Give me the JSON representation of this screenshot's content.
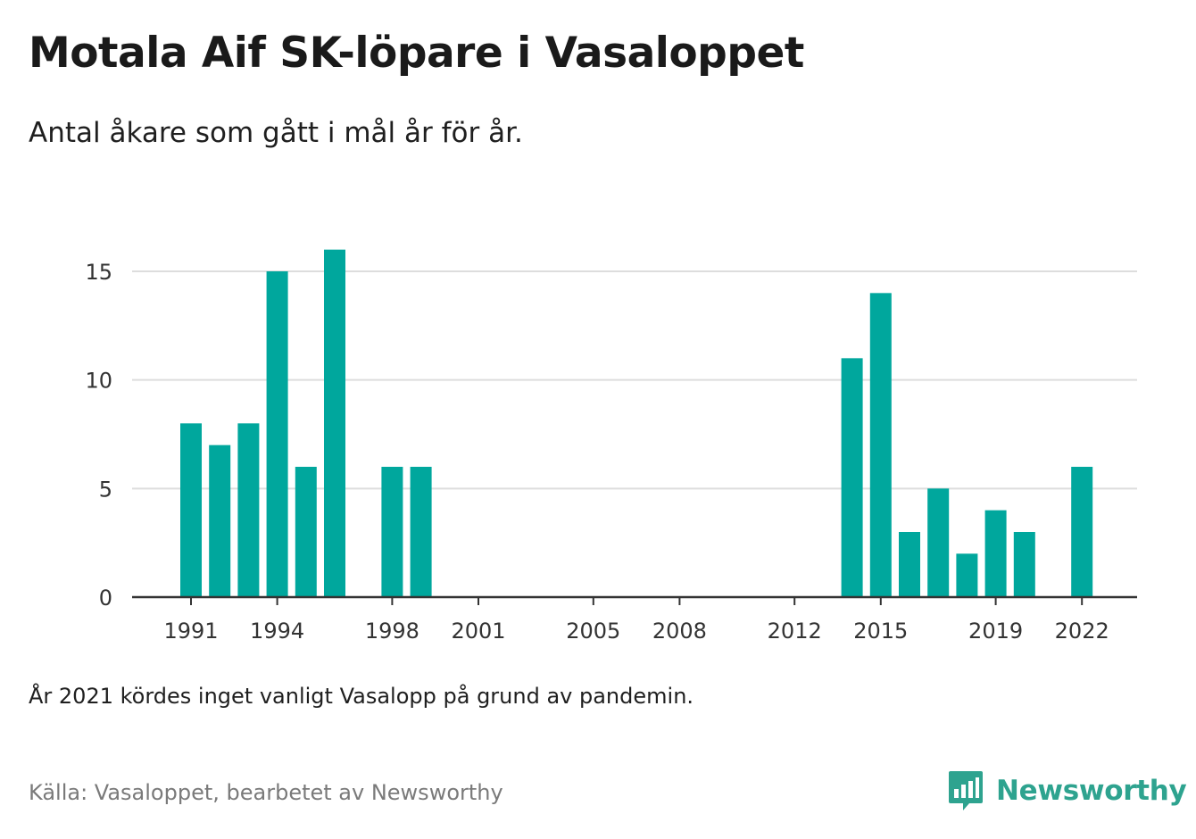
{
  "header": {
    "title": "Motala Aif SK-löpare i Vasaloppet",
    "subtitle": "Antal åkare som gått i mål år för år."
  },
  "footer": {
    "note": "År 2021 kördes inget vanligt Vasalopp på grund av pandemin.",
    "source": "Källa: Vasaloppet, bearbetet av Newsworthy",
    "brand": "Newsworthy"
  },
  "colors": {
    "bar": "#00a79d",
    "gridline": "#dddddd",
    "axis": "#333333",
    "brand": "#2ea38f"
  },
  "icons": {
    "brand_logo": "bar-chart-speech-bubble-icon"
  },
  "chart_data": {
    "type": "bar",
    "title": "Motala Aif SK-löpare i Vasaloppet",
    "subtitle": "Antal åkare som gått i mål år för år.",
    "xlabel": "",
    "ylabel": "",
    "ylim": [
      0,
      16.5
    ],
    "xlim": [
      1989,
      2024
    ],
    "yticks": [
      0,
      5,
      10,
      15
    ],
    "xticks": [
      1991,
      1994,
      1998,
      2001,
      2005,
      2008,
      2012,
      2015,
      2019,
      2022
    ],
    "grid": true,
    "legend": "none",
    "series": [
      {
        "x": [
          1991,
          1992,
          1993,
          1994,
          1995,
          1996,
          1998,
          1999,
          2014,
          2015,
          2016,
          2017,
          2018,
          2019,
          2020,
          2022
        ],
        "values": [
          8,
          7,
          8,
          15,
          6,
          16,
          6,
          6,
          11,
          14,
          3,
          5,
          2,
          4,
          3,
          6
        ]
      }
    ]
  }
}
